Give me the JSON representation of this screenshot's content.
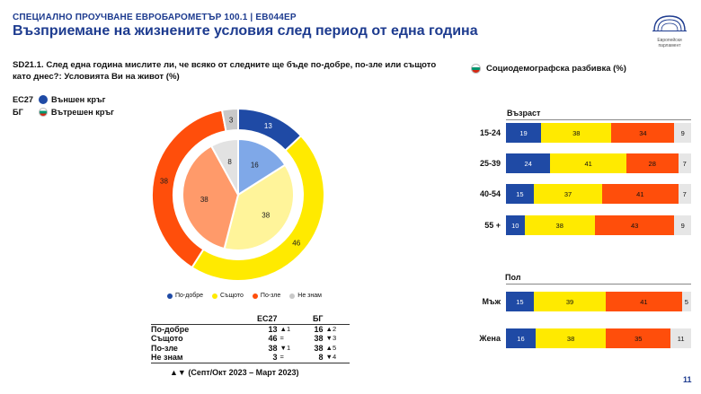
{
  "header": {
    "top_line": "СПЕЦИАЛНО ПРОУЧВАНЕ ЕВРОБАРОМЕТЪР 100.1 | EB044EP",
    "title": "Възприемане на жизнените условия след период от една година",
    "logo_text": "Европейски парламент"
  },
  "question": "SD21.1. След една година мислите ли, че всяко от следните ще бъде по-добре, по-зле или същото като днес?: Условията Ви на живот (%)",
  "ring_legend": {
    "outer_code": "ЕС27",
    "outer_label": "Външен кръг",
    "inner_code": "БГ",
    "inner_label": "Вътрешен кръг"
  },
  "colors": {
    "better": "#1f4aa5",
    "same": "#ffea00",
    "worse": "#ff4e0b",
    "dk": "#c8c8c8",
    "better_light": "#7fa8e8",
    "same_light": "#fff49a",
    "worse_light": "#ff9a6a",
    "dk_light": "#e2e2e2"
  },
  "chart_data": [
    {
      "type": "pie",
      "name": "donut",
      "categories": [
        "По-добре",
        "Същото",
        "По-зле",
        "Не знам"
      ],
      "series": [
        {
          "name": "ЕС27",
          "values": [
            13,
            46,
            38,
            3
          ]
        },
        {
          "name": "БГ",
          "values": [
            16,
            38,
            38,
            8
          ]
        }
      ],
      "legend": "bottom"
    },
    {
      "type": "bar",
      "name": "socio",
      "stacked": true,
      "groups": [
        {
          "title": "Възраст",
          "rows": [
            {
              "label": "15-24",
              "values": [
                19,
                38,
                34,
                9
              ]
            },
            {
              "label": "25-39",
              "values": [
                24,
                41,
                28,
                7
              ]
            },
            {
              "label": "40-54",
              "values": [
                15,
                37,
                41,
                7
              ]
            },
            {
              "label": "55 +",
              "values": [
                10,
                38,
                43,
                9
              ]
            }
          ]
        },
        {
          "title": "Пол",
          "rows": [
            {
              "label": "Мъж",
              "values": [
                15,
                39,
                41,
                5
              ]
            },
            {
              "label": "Жена",
              "values": [
                16,
                38,
                35,
                11
              ]
            }
          ]
        }
      ]
    }
  ],
  "slice_legend": [
    "По-добре",
    "Същото",
    "По-зле",
    "Не знам"
  ],
  "summary_table": {
    "col_eu": "ЕС27",
    "col_bg": "БГ",
    "rows": [
      {
        "label": "По-добре",
        "eu": "13",
        "eu_chg": "▲1",
        "bg": "16",
        "bg_chg": "▲2"
      },
      {
        "label": "Същото",
        "eu": "46",
        "eu_chg": "=",
        "bg": "38",
        "bg_chg": "▼3"
      },
      {
        "label": "По-зле",
        "eu": "38",
        "eu_chg": "▼1",
        "bg": "38",
        "bg_chg": "▲5"
      },
      {
        "label": "Не знам",
        "eu": "3",
        "eu_chg": "=",
        "bg": "8",
        "bg_chg": "▼4"
      }
    ]
  },
  "foot_note": "▲▼ (Септ/Окт 2023 – Март 2023)",
  "socio_title": "Социодемографска разбивка (%)",
  "page_number": "11"
}
